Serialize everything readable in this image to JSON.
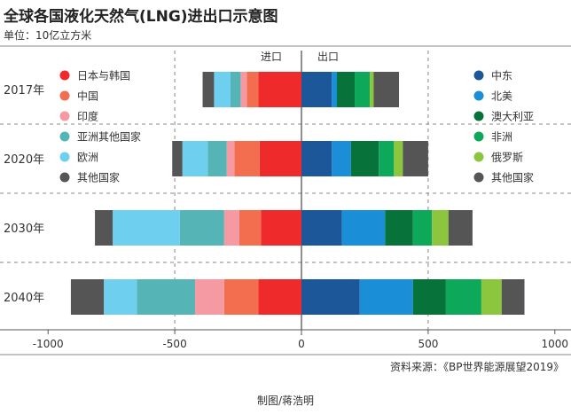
{
  "title": "全球各国液化天然气(LNG)进出口示意图",
  "unit_label": "单位：10亿立方米",
  "source": "资料来源：《BP世界能源展望2019》",
  "credit": "制图/蒋浩明",
  "chart_data": {
    "type": "bar",
    "orientation": "horizontal",
    "stacked": true,
    "diverging": true,
    "import_label": "进口",
    "export_label": "出口",
    "categories": [
      "2017年",
      "2020年",
      "2030年",
      "2040年"
    ],
    "xlim": [
      -1000,
      1000
    ],
    "xticks": [
      -1000,
      -500,
      0,
      500,
      1000
    ],
    "xtick_labels": [
      "-1000",
      "-500",
      "0",
      "500",
      "1000"
    ],
    "import_series": [
      {
        "name": "日本与韩国",
        "color": "#ee2a2a",
        "values": [
          170,
          165,
          160,
          170
        ]
      },
      {
        "name": "中国",
        "color": "#f36e4f",
        "values": [
          45,
          100,
          85,
          135
        ]
      },
      {
        "name": "印度",
        "color": "#f59aa3",
        "values": [
          25,
          30,
          60,
          115
        ]
      },
      {
        "name": "亚洲其他国家",
        "color": "#55b5b6",
        "values": [
          40,
          75,
          175,
          230
        ]
      },
      {
        "name": "欧洲",
        "color": "#6fcfef",
        "values": [
          65,
          100,
          265,
          130
        ]
      },
      {
        "name": "其他国家",
        "color": "#555555",
        "values": [
          45,
          40,
          70,
          130
        ]
      }
    ],
    "export_series": [
      {
        "name": "中东",
        "color": "#1b5799",
        "values": [
          120,
          120,
          160,
          230
        ]
      },
      {
        "name": "北美",
        "color": "#1a8ed6",
        "values": [
          20,
          75,
          170,
          210
        ]
      },
      {
        "name": "澳大利亚",
        "color": "#08723b",
        "values": [
          70,
          110,
          110,
          130
        ]
      },
      {
        "name": "非洲",
        "color": "#0ea85a",
        "values": [
          60,
          60,
          75,
          140
        ]
      },
      {
        "name": "俄罗斯",
        "color": "#8cc63e",
        "values": [
          15,
          35,
          65,
          80
        ]
      },
      {
        "name": "其他国家",
        "color": "#555555",
        "values": [
          100,
          100,
          95,
          90
        ]
      }
    ]
  }
}
